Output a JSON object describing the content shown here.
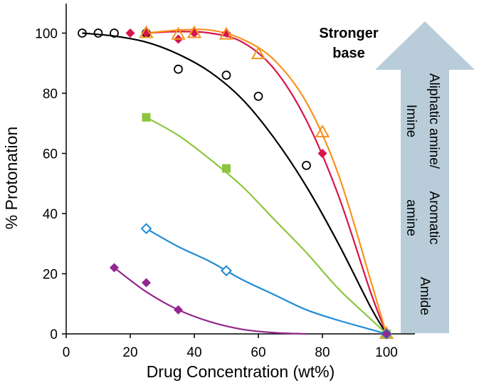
{
  "chart_data": {
    "type": "scatter",
    "title": "",
    "xlabel": "Drug Concentration (wt%)",
    "ylabel": "% Protonation",
    "xlim": [
      0,
      110
    ],
    "ylim": [
      0,
      110
    ],
    "xticks": [
      "0",
      "20",
      "40",
      "60",
      "80",
      "100"
    ],
    "yticks": [
      "0",
      "20",
      "40",
      "60",
      "80",
      "100"
    ],
    "grid": false,
    "series": [
      {
        "marker": "open-circle",
        "color": "#000000",
        "points": [
          [
            5,
            100
          ],
          [
            10,
            100
          ],
          [
            15,
            100
          ],
          [
            25,
            100
          ],
          [
            35,
            88
          ],
          [
            50,
            86
          ],
          [
            60,
            79
          ],
          [
            75,
            56
          ],
          [
            100,
            0
          ]
        ],
        "fit": [
          [
            5,
            100
          ],
          [
            15,
            99
          ],
          [
            25,
            97
          ],
          [
            35,
            93
          ],
          [
            45,
            87
          ],
          [
            55,
            78
          ],
          [
            65,
            65
          ],
          [
            75,
            49
          ],
          [
            85,
            30
          ],
          [
            95,
            9
          ],
          [
            100,
            0
          ]
        ]
      },
      {
        "marker": "filled-diamond",
        "color": "#d6154a",
        "points": [
          [
            20,
            100
          ],
          [
            25,
            100
          ],
          [
            35,
            98
          ],
          [
            40,
            100
          ],
          [
            50,
            100
          ],
          [
            80,
            60
          ],
          [
            100,
            0
          ]
        ],
        "fit": [
          [
            25,
            100
          ],
          [
            35,
            100.5
          ],
          [
            45,
            100
          ],
          [
            55,
            97
          ],
          [
            65,
            88
          ],
          [
            75,
            71
          ],
          [
            85,
            46
          ],
          [
            95,
            14
          ],
          [
            100,
            0
          ]
        ]
      },
      {
        "marker": "open-triangle",
        "color": "#f7931e",
        "points": [
          [
            25,
            100
          ],
          [
            35,
            99.5
          ],
          [
            40,
            100
          ],
          [
            50,
            99.5
          ],
          [
            60,
            93
          ],
          [
            80,
            67
          ],
          [
            100,
            0
          ]
        ],
        "fit": [
          [
            25,
            100
          ],
          [
            35,
            101
          ],
          [
            45,
            101
          ],
          [
            55,
            98
          ],
          [
            65,
            91
          ],
          [
            75,
            77
          ],
          [
            85,
            53
          ],
          [
            95,
            18
          ],
          [
            100,
            0
          ]
        ]
      },
      {
        "marker": "filled-square",
        "color": "#8cc63f",
        "points": [
          [
            25,
            72
          ],
          [
            50,
            55
          ],
          [
            100,
            0
          ]
        ],
        "fit": [
          [
            25,
            72
          ],
          [
            35,
            66
          ],
          [
            45,
            58
          ],
          [
            55,
            49
          ],
          [
            65,
            38
          ],
          [
            75,
            27
          ],
          [
            85,
            15
          ],
          [
            95,
            5
          ],
          [
            100,
            0
          ]
        ]
      },
      {
        "marker": "open-diamond",
        "color": "#1f8dd6",
        "points": [
          [
            25,
            35
          ],
          [
            50,
            21
          ],
          [
            100,
            0
          ]
        ],
        "fit": [
          [
            25,
            35
          ],
          [
            35,
            29
          ],
          [
            45,
            24
          ],
          [
            55,
            18
          ],
          [
            65,
            13
          ],
          [
            75,
            8
          ],
          [
            85,
            4.5
          ],
          [
            95,
            1.5
          ],
          [
            100,
            0
          ]
        ]
      },
      {
        "marker": "filled-diamond",
        "color": "#93278f",
        "points": [
          [
            15,
            22
          ],
          [
            25,
            17
          ],
          [
            35,
            8
          ],
          [
            100,
            0
          ]
        ],
        "fit": [
          [
            15,
            22
          ],
          [
            25,
            14
          ],
          [
            35,
            8
          ],
          [
            45,
            4
          ],
          [
            55,
            1.5
          ],
          [
            65,
            0.4
          ],
          [
            75,
            0
          ]
        ]
      }
    ],
    "annotations": {
      "stronger_base_line1": "Stronger",
      "stronger_base_line2": "base",
      "aliphatic_line1": "Aliphatic amine/",
      "aliphatic_line2": "Imine",
      "aromatic_line1": "Aromatic",
      "aromatic_line2": "amine",
      "amide": "Amide",
      "arrow_color": "#b8cdd9"
    }
  }
}
